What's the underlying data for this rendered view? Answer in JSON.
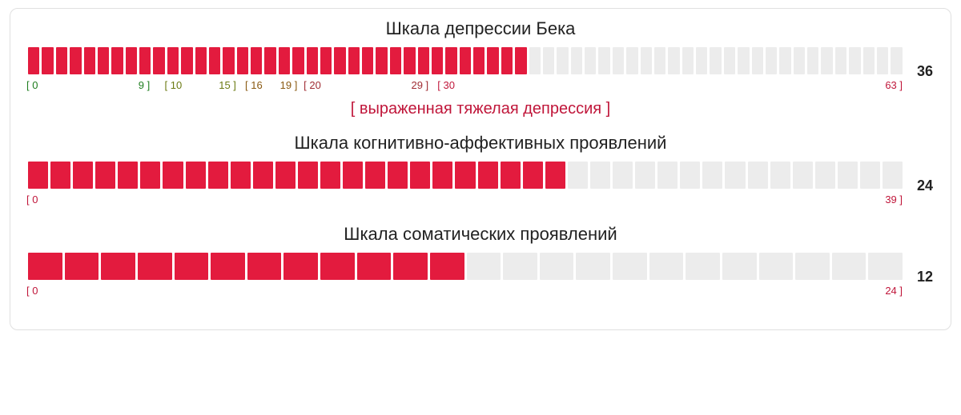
{
  "colors": {
    "fill": "#e31b3e",
    "empty": "#ececec",
    "text": "#222222",
    "accent": "#c0163a"
  },
  "scales": [
    {
      "id": "beck",
      "title": "Шкала депрессии Бека",
      "value": 36,
      "max": 63,
      "score_text": "36",
      "interpretation": "[ выраженная тяжелая депрессия ]",
      "ticks": [
        {
          "text": "[ 0",
          "pos_pct": 0,
          "color": "#1f7d1f"
        },
        {
          "text": "9 ]",
          "pos_pct": 12.8,
          "color": "#1f7d1f"
        },
        {
          "text": "[ 10",
          "pos_pct": 15.8,
          "color": "#6b7a12"
        },
        {
          "text": "15 ]",
          "pos_pct": 22.0,
          "color": "#6b7a12"
        },
        {
          "text": "[ 16",
          "pos_pct": 25.0,
          "color": "#8a5a12"
        },
        {
          "text": "19 ]",
          "pos_pct": 29.0,
          "color": "#8a5a12"
        },
        {
          "text": "[ 20",
          "pos_pct": 31.7,
          "color": "#a02c33"
        },
        {
          "text": "29 ]",
          "pos_pct": 44.0,
          "color": "#a02c33"
        },
        {
          "text": "[ 30",
          "pos_pct": 47.0,
          "color": "#c0163a"
        },
        {
          "text": "63 ]",
          "pos_pct": 100,
          "color": "#c0163a",
          "right_edge": true
        }
      ]
    },
    {
      "id": "cognitive",
      "title": "Шкала когнитивно-аффективных проявлений",
      "value": 24,
      "max": 39,
      "score_text": "24",
      "interpretation": null,
      "ticks": [
        {
          "text": "[ 0",
          "pos_pct": 0,
          "color": "#c0163a"
        },
        {
          "text": "39 ]",
          "pos_pct": 100,
          "color": "#c0163a",
          "right_edge": true
        }
      ]
    },
    {
      "id": "somatic",
      "title": "Шкала соматических проявлений",
      "value": 12,
      "max": 24,
      "score_text": "12",
      "interpretation": null,
      "ticks": [
        {
          "text": "[ 0",
          "pos_pct": 0,
          "color": "#c0163a"
        },
        {
          "text": "24 ]",
          "pos_pct": 100,
          "color": "#c0163a",
          "right_edge": true
        }
      ]
    }
  ]
}
